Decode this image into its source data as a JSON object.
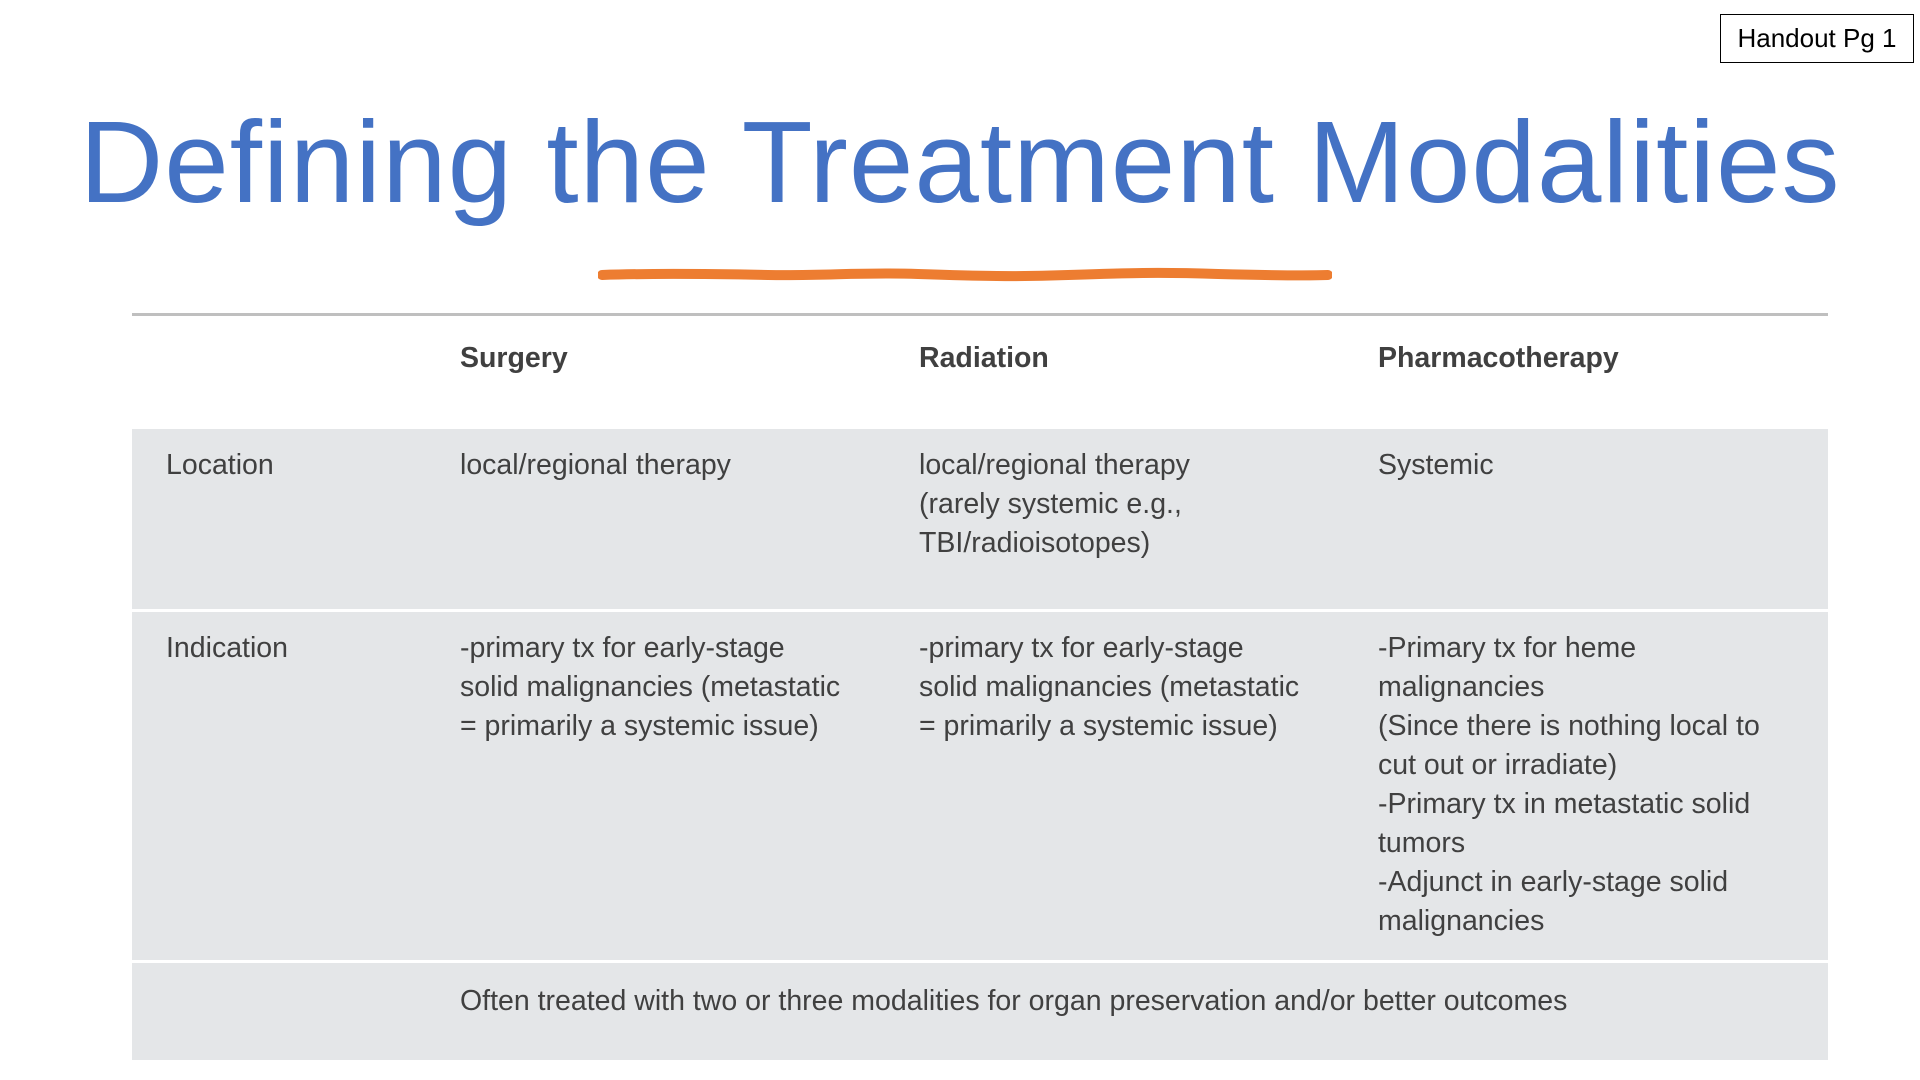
{
  "handout_label": "Handout Pg 1",
  "title": "Defining the Treatment Modalities",
  "accent_color": "#4472c4",
  "underline_color": "#ed7d31",
  "table": {
    "columns": [
      "",
      "Surgery",
      "Radiation",
      "Pharmacotherapy"
    ],
    "rows": [
      {
        "label": "Location",
        "surgery": "local/regional therapy",
        "radiation": "local/regional therapy\n(rarely systemic e.g.,\nTBI/radioisotopes)",
        "pharmacotherapy": "Systemic"
      },
      {
        "label": "Indication",
        "surgery": "-primary tx for early-stage\nsolid malignancies (metastatic\n= primarily a systemic issue)",
        "radiation": "-primary tx for early-stage\nsolid malignancies (metastatic\n= primarily a systemic issue)",
        "pharmacotherapy": "-Primary tx for heme\nmalignancies\n(Since there is nothing local to\ncut out or irradiate)\n-Primary tx in metastatic solid\ntumors\n-Adjunct in early-stage solid\nmalignancies"
      }
    ],
    "footer_note": "Often treated with two or three modalities for organ preservation and/or better outcomes"
  }
}
